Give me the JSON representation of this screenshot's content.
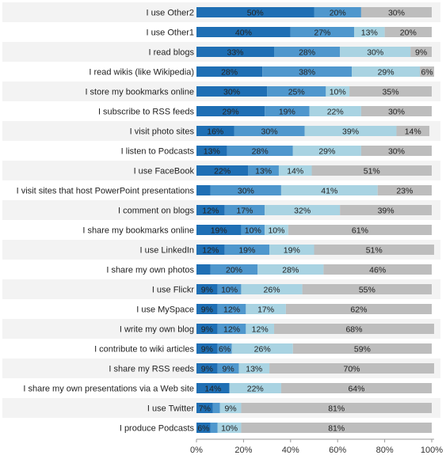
{
  "chart_data": {
    "type": "bar",
    "orientation": "horizontal",
    "stacked": true,
    "xlim": [
      0,
      100
    ],
    "x_ticks": [
      "0%",
      "20%",
      "40%",
      "60%",
      "80%",
      "100%"
    ],
    "grid": false,
    "legend": "none",
    "title": "",
    "xlabel": "",
    "ylabel": "",
    "segment_colors": [
      "#1f6fb4",
      "#4f97cd",
      "#a9d3e2",
      "#bdbdbd"
    ],
    "categories": [
      "I use Other2",
      "I use Other1",
      "I read blogs",
      "I read wikis (like Wikipedia)",
      "I store my bookmarks online",
      "I subscribe to RSS feeds",
      "I visit photo sites",
      "I listen to Podcasts",
      "I use FaceBook",
      "I visit sites that host PowerPoint presentations",
      "I comment on blogs",
      "I share my bookmarks online",
      "I use LinkedIn",
      "I share my own photos",
      "I use Flickr",
      "I use MySpace",
      "I write my own blog",
      "I contribute to wiki articles",
      "I share my RSS reeds",
      "I share my own presentations via a Web site",
      "I use Twitter",
      "I produce Podcasts"
    ],
    "rows": [
      [
        50,
        20,
        0,
        30
      ],
      [
        40,
        27,
        13,
        20
      ],
      [
        33,
        28,
        30,
        9
      ],
      [
        28,
        38,
        29,
        6
      ],
      [
        30,
        25,
        10,
        35
      ],
      [
        29,
        19,
        22,
        30
      ],
      [
        16,
        30,
        39,
        14
      ],
      [
        13,
        28,
        29,
        30
      ],
      [
        22,
        13,
        14,
        51
      ],
      [
        6,
        30,
        41,
        23
      ],
      [
        12,
        17,
        32,
        39
      ],
      [
        19,
        10,
        10,
        61
      ],
      [
        12,
        19,
        19,
        51
      ],
      [
        6,
        20,
        28,
        46
      ],
      [
        9,
        10,
        26,
        55
      ],
      [
        9,
        12,
        17,
        62
      ],
      [
        9,
        12,
        12,
        68
      ],
      [
        9,
        6,
        26,
        59
      ],
      [
        9,
        9,
        13,
        70
      ],
      [
        14,
        0,
        22,
        64
      ],
      [
        7,
        3,
        9,
        81
      ],
      [
        6,
        3,
        10,
        81
      ]
    ],
    "labels": [
      [
        "50%",
        "20%",
        "",
        "30%"
      ],
      [
        "40%",
        "27%",
        "13%",
        "20%"
      ],
      [
        "33%",
        "28%",
        "30%",
        "9%"
      ],
      [
        "28%",
        "38%",
        "29%",
        "6%"
      ],
      [
        "30%",
        "25%",
        "10%",
        "35%"
      ],
      [
        "29%",
        "19%",
        "22%",
        "30%"
      ],
      [
        "16%",
        "30%",
        "39%",
        "14%"
      ],
      [
        "13%",
        "28%",
        "29%",
        "30%"
      ],
      [
        "22%",
        "13%",
        "14%",
        "51%"
      ],
      [
        "",
        "30%",
        "41%",
        "23%"
      ],
      [
        "12%",
        "17%",
        "32%",
        "39%"
      ],
      [
        "19%",
        "10%",
        "10%",
        "61%"
      ],
      [
        "12%",
        "19%",
        "19%",
        "51%"
      ],
      [
        "",
        "20%",
        "28%",
        "46%"
      ],
      [
        "9%",
        "10%",
        "26%",
        "55%"
      ],
      [
        "9%",
        "12%",
        "17%",
        "62%"
      ],
      [
        "9%",
        "12%",
        "12%",
        "68%"
      ],
      [
        "9%",
        "6%",
        "26%",
        "59%"
      ],
      [
        "9%",
        "9%",
        "13%",
        "70%"
      ],
      [
        "14%",
        "",
        "22%",
        "64%"
      ],
      [
        "7%",
        "",
        "9%",
        "81%"
      ],
      [
        "6%",
        "",
        "10%",
        "81%"
      ]
    ]
  }
}
